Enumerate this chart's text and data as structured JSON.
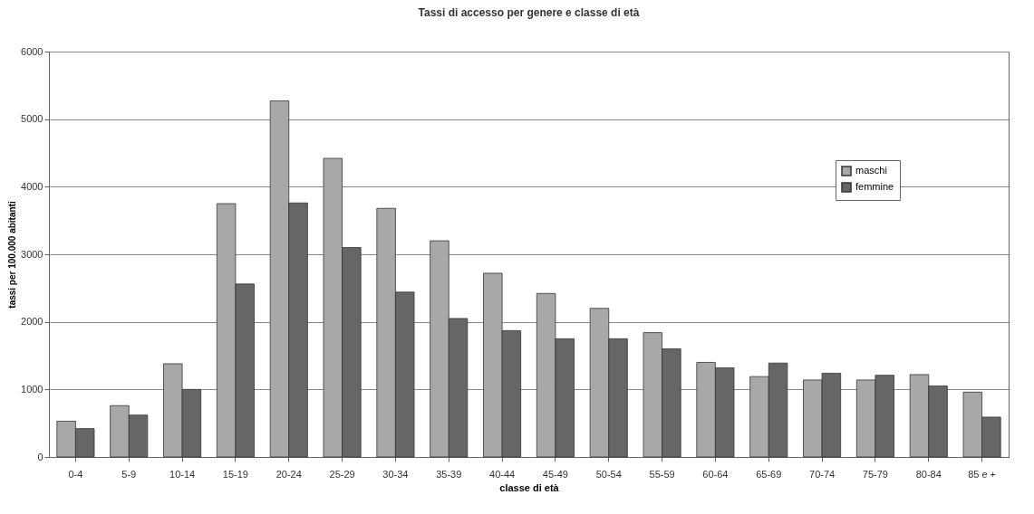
{
  "chart_data": {
    "type": "bar",
    "title": "Tassi di accesso per genere e classe di età",
    "xlabel": "classe di età",
    "ylabel": "tassi per 100.000 abitanti",
    "categories": [
      "0-4",
      "5-9",
      "10-14",
      "15-19",
      "20-24",
      "25-29",
      "30-34",
      "35-39",
      "40-44",
      "45-49",
      "50-54",
      "55-59",
      "60-64",
      "65-69",
      "70-74",
      "75-79",
      "80-84",
      "85 e +"
    ],
    "series": [
      {
        "name": "maschi",
        "color": "#a8a8a8",
        "values": [
          530,
          760,
          1380,
          3750,
          5270,
          4420,
          3680,
          3200,
          2720,
          2420,
          2200,
          1840,
          1400,
          1190,
          1140,
          1140,
          1220,
          960
        ]
      },
      {
        "name": "femmine",
        "color": "#666666",
        "values": [
          420,
          620,
          1000,
          2560,
          3760,
          3100,
          2440,
          2050,
          1870,
          1750,
          1750,
          1600,
          1320,
          1390,
          1240,
          1210,
          1050,
          590
        ]
      }
    ],
    "ylim": [
      0,
      6000
    ],
    "yticks": [
      0,
      1000,
      2000,
      3000,
      4000,
      5000,
      6000
    ],
    "grid": "y",
    "legend": "top right"
  }
}
